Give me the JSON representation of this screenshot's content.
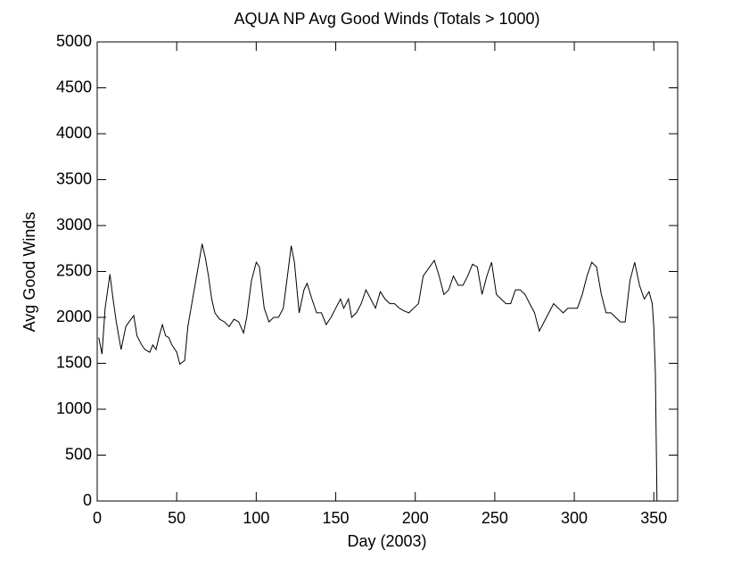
{
  "chart_data": {
    "type": "line",
    "title": "AQUA NP Avg Good Winds (Totals > 1000)",
    "x_label": "Day (2003)",
    "y_label": "Avg Good Winds",
    "xlim": [
      0,
      365
    ],
    "xticks": [
      0,
      50,
      100,
      150,
      200,
      250,
      300,
      350
    ],
    "ylim": [
      0,
      5000
    ],
    "yticks": [
      0,
      500,
      1000,
      1500,
      2000,
      2500,
      3000,
      3500,
      4000,
      4500,
      5000
    ],
    "series": [
      {
        "name": "Avg Good Winds",
        "color": "#000000",
        "x": [
          1,
          3,
          5,
          8,
          10,
          12,
          15,
          18,
          20,
          23,
          25,
          28,
          30,
          33,
          35,
          37,
          39,
          41,
          43,
          45,
          47,
          50,
          52,
          55,
          57,
          60,
          63,
          66,
          68,
          70,
          72,
          74,
          77,
          80,
          83,
          86,
          89,
          92,
          94,
          97,
          100,
          102,
          105,
          108,
          111,
          114,
          117,
          120,
          122,
          124,
          127,
          130,
          132,
          135,
          138,
          141,
          144,
          147,
          150,
          153,
          155,
          158,
          160,
          163,
          166,
          169,
          172,
          175,
          178,
          181,
          184,
          187,
          190,
          193,
          196,
          199,
          202,
          205,
          209,
          212,
          215,
          218,
          221,
          224,
          227,
          230,
          233,
          236,
          239,
          242,
          245,
          248,
          251,
          254,
          257,
          260,
          263,
          266,
          269,
          272,
          275,
          278,
          281,
          284,
          287,
          290,
          293,
          296,
          299,
          302,
          305,
          308,
          311,
          314,
          317,
          320,
          323,
          326,
          329,
          332,
          335,
          338,
          341,
          344,
          347,
          349,
          350,
          351,
          352
        ],
        "values": [
          1780,
          1600,
          2100,
          2470,
          2200,
          1950,
          1650,
          1900,
          1950,
          2020,
          1800,
          1700,
          1650,
          1620,
          1700,
          1650,
          1800,
          1920,
          1800,
          1780,
          1700,
          1620,
          1490,
          1530,
          1900,
          2200,
          2500,
          2800,
          2650,
          2450,
          2200,
          2050,
          1980,
          1950,
          1900,
          1980,
          1950,
          1830,
          2000,
          2400,
          2600,
          2550,
          2100,
          1950,
          2000,
          2000,
          2100,
          2500,
          2780,
          2600,
          2050,
          2300,
          2370,
          2200,
          2050,
          2050,
          1920,
          2000,
          2100,
          2200,
          2100,
          2200,
          2000,
          2050,
          2150,
          2300,
          2200,
          2100,
          2280,
          2200,
          2150,
          2150,
          2100,
          2070,
          2050,
          2100,
          2150,
          2450,
          2550,
          2620,
          2450,
          2250,
          2300,
          2450,
          2350,
          2350,
          2450,
          2580,
          2550,
          2250,
          2450,
          2600,
          2250,
          2200,
          2150,
          2150,
          2300,
          2300,
          2250,
          2150,
          2050,
          1850,
          1950,
          2050,
          2150,
          2100,
          2050,
          2100,
          2100,
          2100,
          2250,
          2450,
          2600,
          2550,
          2250,
          2050,
          2050,
          2000,
          1950,
          1950,
          2400,
          2600,
          2350,
          2200,
          2280,
          2150,
          1900,
          1400,
          0
        ]
      }
    ]
  }
}
